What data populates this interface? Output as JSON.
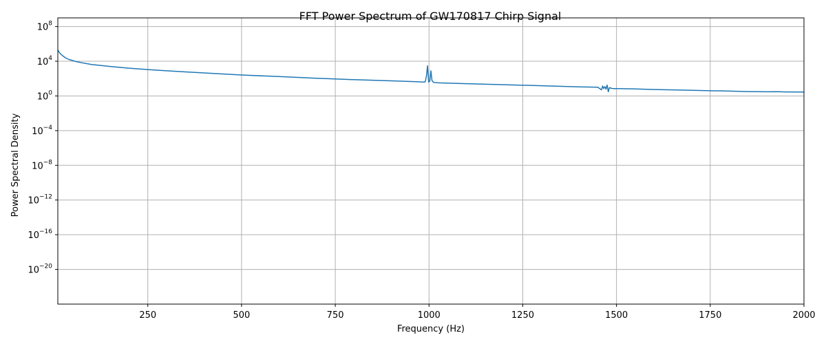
{
  "chart_data": {
    "type": "line",
    "title": "FFT Power Spectrum of GW170817 Chirp Signal",
    "xlabel": "Frequency (Hz)",
    "ylabel": "Power Spectral Density",
    "xlim": [
      10,
      2000
    ],
    "ylim": [
      1e-24,
      1000000000.0
    ],
    "yscale": "log",
    "grid": true,
    "x_ticks": [
      250,
      500,
      750,
      1000,
      1250,
      1500,
      1750,
      2000
    ],
    "y_ticks": [
      {
        "base": "10",
        "exp": "8",
        "value": 100000000.0
      },
      {
        "base": "10",
        "exp": "4",
        "value": 10000.0
      },
      {
        "base": "10",
        "exp": "0",
        "value": 1
      },
      {
        "base": "10",
        "exp": "−4",
        "value": 0.0001
      },
      {
        "base": "10",
        "exp": "−8",
        "value": 1e-08
      },
      {
        "base": "10",
        "exp": "−12",
        "value": 1e-12
      },
      {
        "base": "10",
        "exp": "−16",
        "value": 1e-16
      },
      {
        "base": "10",
        "exp": "−20",
        "value": 1e-20
      }
    ],
    "series": [
      {
        "color": "#1f77b4",
        "x": [
          10,
          12,
          15,
          20,
          30,
          40,
          60,
          80,
          100,
          150,
          200,
          250,
          300,
          400,
          500,
          600,
          700,
          750,
          800,
          900,
          960,
          985,
          990,
          993,
          996,
          999,
          1002,
          1005,
          1008,
          1011,
          1015,
          1030,
          1100,
          1200,
          1300,
          1400,
          1450,
          1460,
          1463,
          1466,
          1469,
          1472,
          1475,
          1478,
          1481,
          1485,
          1490,
          1500,
          1550,
          1600,
          1650,
          1700,
          1750,
          1780,
          1800,
          1850,
          1900,
          1930,
          1950,
          2000
        ],
        "y": [
          200000,
          140000,
          90000,
          55000,
          25000,
          16000,
          9000,
          6000,
          4300,
          2500,
          1600,
          1100,
          800,
          450,
          260,
          170,
          110,
          90,
          75,
          55,
          45,
          40,
          42,
          200,
          3000,
          40,
          50,
          800,
          60,
          40,
          35,
          32,
          26,
          20,
          15,
          11,
          10,
          5,
          14,
          7,
          12,
          6,
          18,
          3,
          9,
          8,
          7,
          7,
          6.5,
          5.5,
          5,
          4.5,
          4,
          3.8,
          3.6,
          3.2,
          3,
          3.1,
          2.9,
          2.8
        ]
      }
    ]
  }
}
